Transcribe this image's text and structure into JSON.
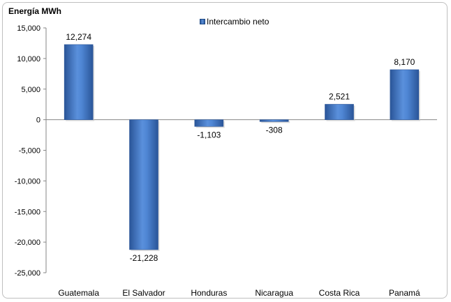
{
  "chart_data": {
    "type": "bar",
    "title": "",
    "ylabel": "Energía MWh",
    "xlabel": "",
    "categories": [
      "Guatemala",
      "El Salvador",
      "Honduras",
      "Nicaragua",
      "Costa Rica",
      "Panamá"
    ],
    "series": [
      {
        "name": "Intercambio neto",
        "values": [
          12274,
          -21228,
          -1103,
          -308,
          2521,
          8170
        ]
      }
    ],
    "data_labels": [
      "12,274",
      "-21,228",
      "-1,103",
      "-308",
      "2,521",
      "8,170"
    ],
    "ylim": [
      -25000,
      15000
    ],
    "yticks": [
      15000,
      10000,
      5000,
      0,
      -5000,
      -10000,
      -15000,
      -20000,
      -25000
    ],
    "ytick_labels": [
      "15,000",
      "10,000",
      "5,000",
      "0",
      "-5,000",
      "-10,000",
      "-15,000",
      "-20,000",
      "-25,000"
    ],
    "grid": false,
    "legend_position": "top-center",
    "bar_color": "#3f74c4"
  }
}
